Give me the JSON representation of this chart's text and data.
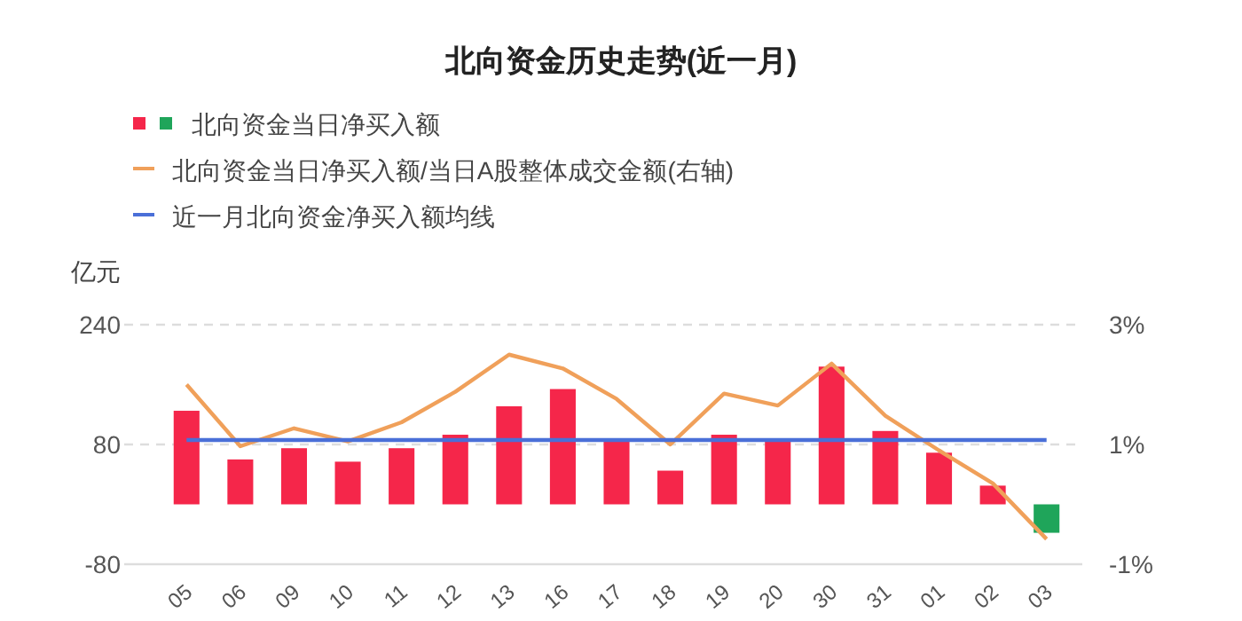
{
  "chart_data": {
    "type": "bar",
    "title": "北向资金历史走势(近一月)",
    "ylabel": "亿元",
    "categories": [
      "05",
      "06",
      "09",
      "10",
      "11",
      "12",
      "13",
      "16",
      "17",
      "18",
      "19",
      "20",
      "30",
      "31",
      "01",
      "02",
      "03"
    ],
    "series": [
      {
        "name": "北向资金当日净买入额",
        "colors": [
          "#f5264a",
          "#f5264a",
          "#f5264a",
          "#f5264a",
          "#f5264a",
          "#f5264a",
          "#f5264a",
          "#f5264a",
          "#f5264a",
          "#f5264a",
          "#f5264a",
          "#f5264a",
          "#f5264a",
          "#f5264a",
          "#f5264a",
          "#f5264a",
          "#1fa55a"
        ],
        "values": [
          125,
          60,
          75,
          57,
          75,
          93,
          131,
          154,
          87,
          45,
          93,
          87,
          184,
          98,
          69,
          25,
          -38
        ]
      },
      {
        "name": "北向资金当日净买入额/当日A股整体成交金额(右轴)",
        "type": "line",
        "axis": "y2",
        "color": "#f0a05a",
        "values": [
          2.0,
          0.97,
          1.27,
          1.05,
          1.37,
          1.88,
          2.5,
          2.27,
          1.76,
          1.0,
          1.85,
          1.65,
          2.35,
          1.48,
          0.9,
          0.35,
          -0.58
        ]
      },
      {
        "name": "近一月北向资金净买入额均线",
        "type": "line",
        "color": "#4a6fd8",
        "values": [
          86,
          86,
          86,
          86,
          86,
          86,
          86,
          86,
          86,
          86,
          86,
          86,
          86,
          86,
          86,
          86,
          86
        ]
      }
    ],
    "ylim": [
      -80,
      240
    ],
    "yticks": [
      -80,
      80,
      240
    ],
    "y2lim": [
      -1,
      3
    ],
    "y2ticks": [
      {
        "value": -1,
        "label": "-1%"
      },
      {
        "value": 1,
        "label": "1%"
      },
      {
        "value": 3,
        "label": "3%"
      }
    ],
    "grid": "y",
    "legend": "top left"
  }
}
